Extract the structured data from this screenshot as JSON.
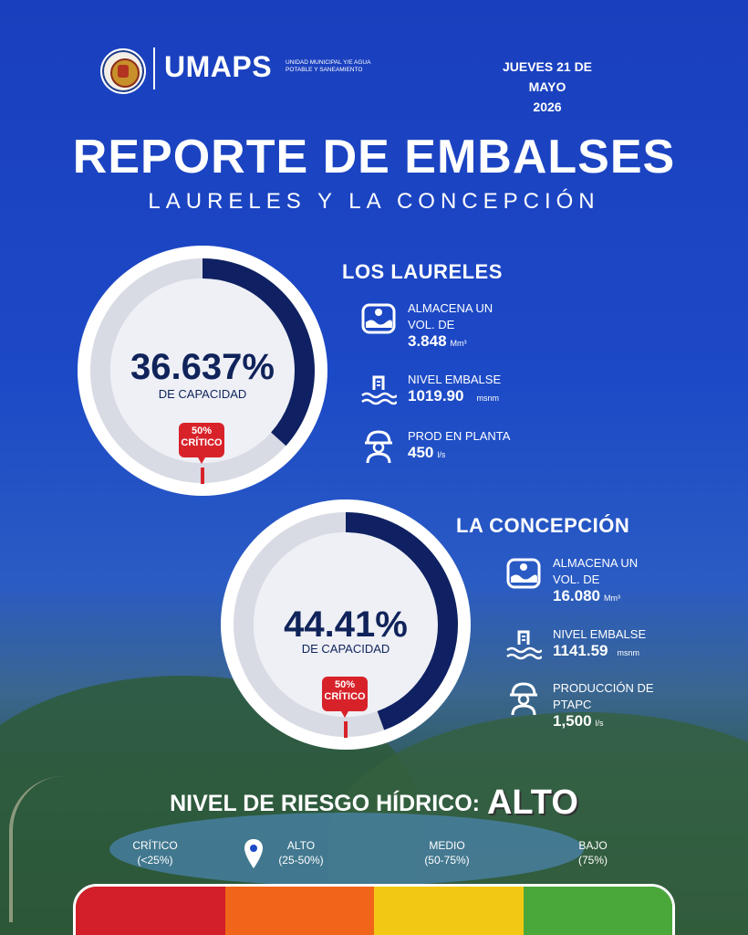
{
  "header": {
    "logo_text": "UMAPS",
    "logo_subtitle": "UNIDAD MUNICIPAL Y/E AGUA POTABLE Y SANEAMIENTO",
    "date_line1": "JUEVES 21 DE MAYO",
    "date_line2": "2026"
  },
  "title": "REPORTE DE EMBALSES",
  "subtitle": "LAURELES Y LA CONCEPCIÓN",
  "reservoirs": [
    {
      "name": "LOS LAURELES",
      "capacity_percent": 36.637,
      "capacity_text": "36.637%",
      "capacity_label": "DE CAPACIDAD",
      "critical_text": "50%",
      "critical_label": "CRÍTICO",
      "critical_threshold_percent": 50,
      "stats": [
        {
          "icon": "reservoir-volume-icon",
          "label_line1": "ALMACENA UN",
          "label_line2": "VOL. DE",
          "value": "3.848",
          "unit": "Mm³"
        },
        {
          "icon": "water-level-icon",
          "label_line1": "NIVEL EMBALSE",
          "label_line2": "",
          "value": "1019.90",
          "unit": "msnm"
        },
        {
          "icon": "worker-icon",
          "label_line1": "PROD EN PLANTA",
          "label_line2": "",
          "value": "450",
          "unit": "l/s"
        }
      ]
    },
    {
      "name": "LA CONCEPCIÓN",
      "capacity_percent": 44.41,
      "capacity_text": "44.41%",
      "capacity_label": "DE CAPACIDAD",
      "critical_text": "50%",
      "critical_label": "CRÍTICO",
      "critical_threshold_percent": 50,
      "stats": [
        {
          "icon": "reservoir-volume-icon",
          "label_line1": "ALMACENA UN",
          "label_line2": "VOL. DE",
          "value": "16.080",
          "unit": "Mm³"
        },
        {
          "icon": "water-level-icon",
          "label_line1": "NIVEL EMBALSE",
          "label_line2": "",
          "value": "1141.59",
          "unit": "msnm"
        },
        {
          "icon": "worker-icon",
          "label_line1": "PRODUCCIÓN DE",
          "label_line2": "PTAPC",
          "value": "1,500",
          "unit": "l/s"
        }
      ]
    }
  ],
  "risk": {
    "label": "NIVEL DE RIESGO HÍDRICO:",
    "level": "ALTO",
    "scale": [
      {
        "name": "CRÍTICO",
        "range": "(<25%)",
        "color": "#d21f2a"
      },
      {
        "name": "ALTO",
        "range": "(25-50%)",
        "color": "#f0651a"
      },
      {
        "name": "MEDIO",
        "range": "(50-75%)",
        "color": "#f2c814"
      },
      {
        "name": "BAJO",
        "range": "(75%)",
        "color": "#4aa83a"
      }
    ]
  },
  "colors": {
    "background": "#1c49c6",
    "gauge_fill": "#0f2162",
    "gauge_track": "#d8dbe4",
    "critical": "#d8222a"
  }
}
